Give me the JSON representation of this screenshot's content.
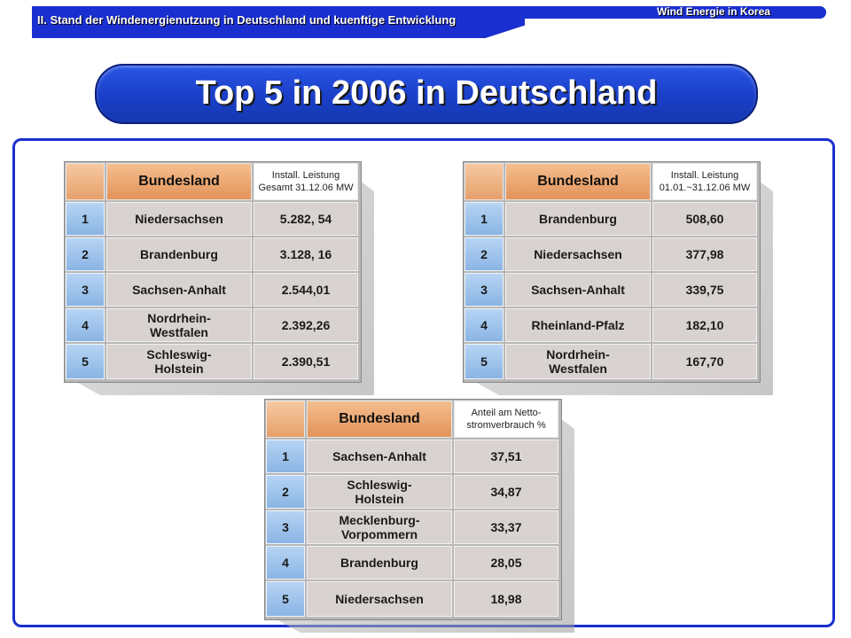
{
  "header": {
    "section_title": "II. Stand der Windenergienutzung in Deutschland und kuenftige Entwicklung",
    "brand": "Wind Energie in Korea"
  },
  "main_title": "Top 5 in 2006 in Deutschland",
  "colors": {
    "accent_blue": "#1a2fd0",
    "header_orange": "#e6a06a",
    "rank_blue": "#8ab4e4",
    "cell_grey": "#d8d3d0"
  },
  "tables": [
    {
      "header_region": "Bundesland",
      "header_value": "Install. Leistung Gesamt 31.12.06 MW",
      "rows": [
        {
          "rank": "1",
          "region": "Niedersachsen",
          "value": "5.282, 54"
        },
        {
          "rank": "2",
          "region": "Brandenburg",
          "value": "3.128, 16"
        },
        {
          "rank": "3",
          "region": "Sachsen-Anhalt",
          "value": "2.544,01"
        },
        {
          "rank": "4",
          "region": "Nordrhein-Westfalen",
          "value": "2.392,26"
        },
        {
          "rank": "5",
          "region": "Schleswig-Holstein",
          "value": "2.390,51"
        }
      ]
    },
    {
      "header_region": "Bundesland",
      "header_value": "Install. Leistung 01.01.~31.12.06 MW",
      "rows": [
        {
          "rank": "1",
          "region": "Brandenburg",
          "value": "508,60"
        },
        {
          "rank": "2",
          "region": "Niedersachsen",
          "value": "377,98"
        },
        {
          "rank": "3",
          "region": "Sachsen-Anhalt",
          "value": "339,75"
        },
        {
          "rank": "4",
          "region": "Rheinland-Pfalz",
          "value": "182,10"
        },
        {
          "rank": "5",
          "region": "Nordrhein-Westfalen",
          "value": "167,70"
        }
      ]
    },
    {
      "header_region": "Bundesland",
      "header_value": "Anteil am Netto-stromverbrauch %",
      "rows": [
        {
          "rank": "1",
          "region": "Sachsen-Anhalt",
          "value": "37,51"
        },
        {
          "rank": "2",
          "region": "Schleswig-Holstein",
          "value": "34,87"
        },
        {
          "rank": "3",
          "region": "Mecklenburg-Vorpommern",
          "value": "33,37"
        },
        {
          "rank": "4",
          "region": "Brandenburg",
          "value": "28,05"
        },
        {
          "rank": "5",
          "region": "Niedersachsen",
          "value": "18,98"
        }
      ]
    }
  ]
}
